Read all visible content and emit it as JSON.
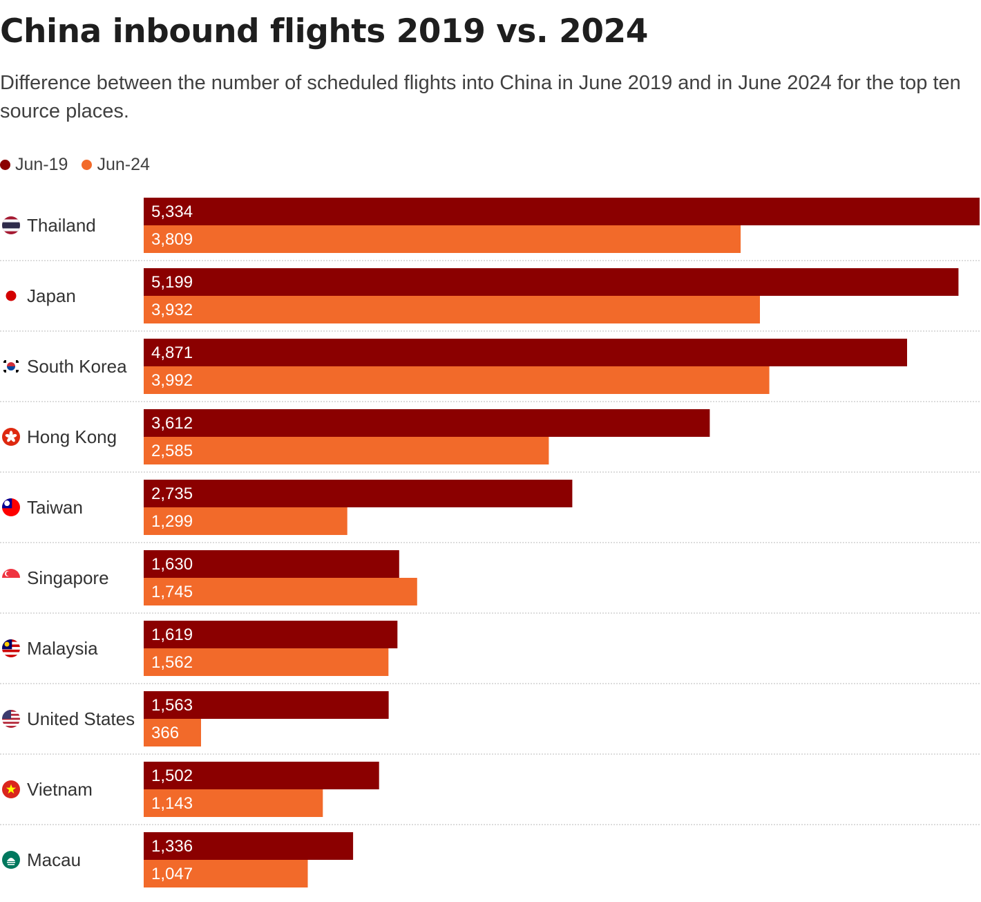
{
  "colors": {
    "jun19": "#8b0000",
    "jun24": "#f26a2a"
  },
  "chart_data": {
    "type": "bar",
    "orientation": "horizontal",
    "title": "China inbound flights 2019 vs. 2024",
    "subtitle": "Difference between the number of scheduled flights into China in June 2019 and in June 2024 for the top ten source places.",
    "categories": [
      "Thailand",
      "Japan",
      "South Korea",
      "Hong Kong",
      "Taiwan",
      "Singapore",
      "Malaysia",
      "United States",
      "Vietnam",
      "Macau"
    ],
    "flag_icons": [
      "thailand-flag-icon",
      "japan-flag-icon",
      "south-korea-flag-icon",
      "hong-kong-flag-icon",
      "taiwan-flag-icon",
      "singapore-flag-icon",
      "malaysia-flag-icon",
      "united-states-flag-icon",
      "vietnam-flag-icon",
      "macau-flag-icon"
    ],
    "series": [
      {
        "name": "Jun-19",
        "color": "#8b0000",
        "values": [
          5334,
          5199,
          4871,
          3612,
          2735,
          1630,
          1619,
          1563,
          1502,
          1336
        ],
        "labels": [
          "5,334",
          "5,199",
          "4,871",
          "3,612",
          "2,735",
          "1,630",
          "1,619",
          "1,563",
          "1,502",
          "1,336"
        ]
      },
      {
        "name": "Jun-24",
        "color": "#f26a2a",
        "values": [
          3809,
          3932,
          3992,
          2585,
          1299,
          1745,
          1562,
          366,
          1143,
          1047
        ],
        "labels": [
          "3,809",
          "3,932",
          "3,992",
          "2,585",
          "1,299",
          "1,745",
          "1,562",
          "366",
          "1,143",
          "1,047"
        ]
      }
    ],
    "xlim": [
      0,
      5334
    ],
    "grid": false,
    "legend_position": "top-left",
    "data_labels": "inside-bar-start"
  }
}
